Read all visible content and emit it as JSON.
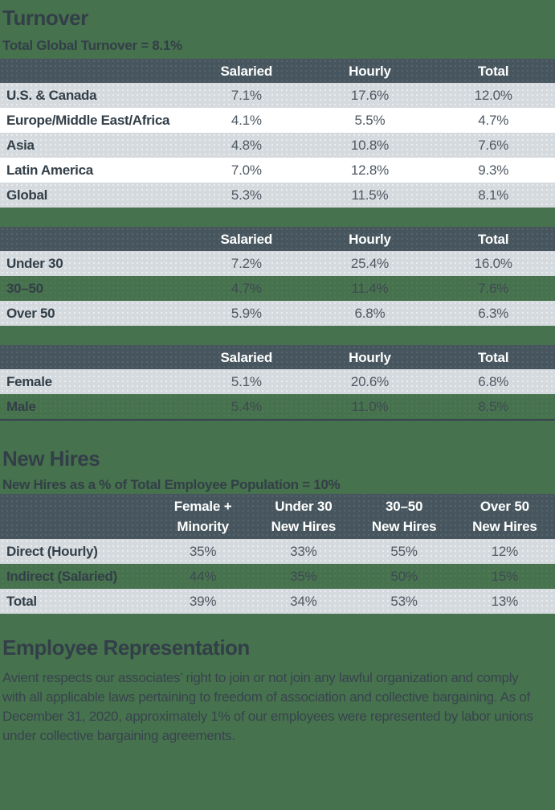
{
  "page": {
    "background_color": "#47724E",
    "header_bar_color": "#47565E",
    "row_gray_color": "#D5DADE",
    "text_dark_color": "#333F48"
  },
  "turnover": {
    "title": "Turnover",
    "subtitle": "Total Global Turnover = 8.1%",
    "by_region": {
      "columns": [
        "Salaried",
        "Hourly",
        "Total"
      ],
      "rows": [
        {
          "label": "U.S. & Canada",
          "values": [
            "7.1%",
            "17.6%",
            "12.0%"
          ]
        },
        {
          "label": "Europe/Middle East/Africa",
          "values": [
            "4.1%",
            "5.5%",
            "4.7%"
          ]
        },
        {
          "label": "Asia",
          "values": [
            "4.8%",
            "10.8%",
            "7.6%"
          ]
        },
        {
          "label": "Latin America",
          "values": [
            "7.0%",
            "12.8%",
            "9.3%"
          ]
        },
        {
          "label": "Global",
          "values": [
            "5.3%",
            "11.5%",
            "8.1%"
          ]
        }
      ]
    },
    "by_age": {
      "columns": [
        "Salaried",
        "Hourly",
        "Total"
      ],
      "rows": [
        {
          "label": "Under 30",
          "values": [
            "7.2%",
            "25.4%",
            "16.0%"
          ]
        },
        {
          "label": "30–50",
          "values": [
            "4.7%",
            "11.4%",
            "7.6%"
          ]
        },
        {
          "label": "Over 50",
          "values": [
            "5.9%",
            "6.8%",
            "6.3%"
          ]
        }
      ]
    },
    "by_gender": {
      "columns": [
        "Salaried",
        "Hourly",
        "Total"
      ],
      "rows": [
        {
          "label": "Female",
          "values": [
            "5.1%",
            "20.6%",
            "6.8%"
          ]
        },
        {
          "label": "Male",
          "values": [
            "5.4%",
            "11.0%",
            "8.5%"
          ]
        }
      ]
    }
  },
  "new_hires": {
    "title": "New Hires",
    "subtitle": "New Hires as a % of Total Employee Population = 10%",
    "table": {
      "columns": [
        "Female +\nMinority",
        "Under 30\nNew Hires",
        "30–50\nNew Hires",
        "Over 50\nNew Hires"
      ],
      "rows": [
        {
          "label": "Direct (Hourly)",
          "values": [
            "35%",
            "33%",
            "55%",
            "12%"
          ]
        },
        {
          "label": "Indirect (Salaried)",
          "values": [
            "44%",
            "35%",
            "50%",
            "15%"
          ]
        },
        {
          "label": "Total",
          "values": [
            "39%",
            "34%",
            "53%",
            "13%"
          ]
        }
      ]
    }
  },
  "employee_representation": {
    "title": "Employee Representation",
    "body": "Avient respects our associates’ right to join or not join any lawful organization and comply with all applicable laws pertaining to freedom of association and collective bargaining. As of December 31, 2020, approximately 1% of our employees were represented by labor unions under collective bargaining agreements."
  }
}
